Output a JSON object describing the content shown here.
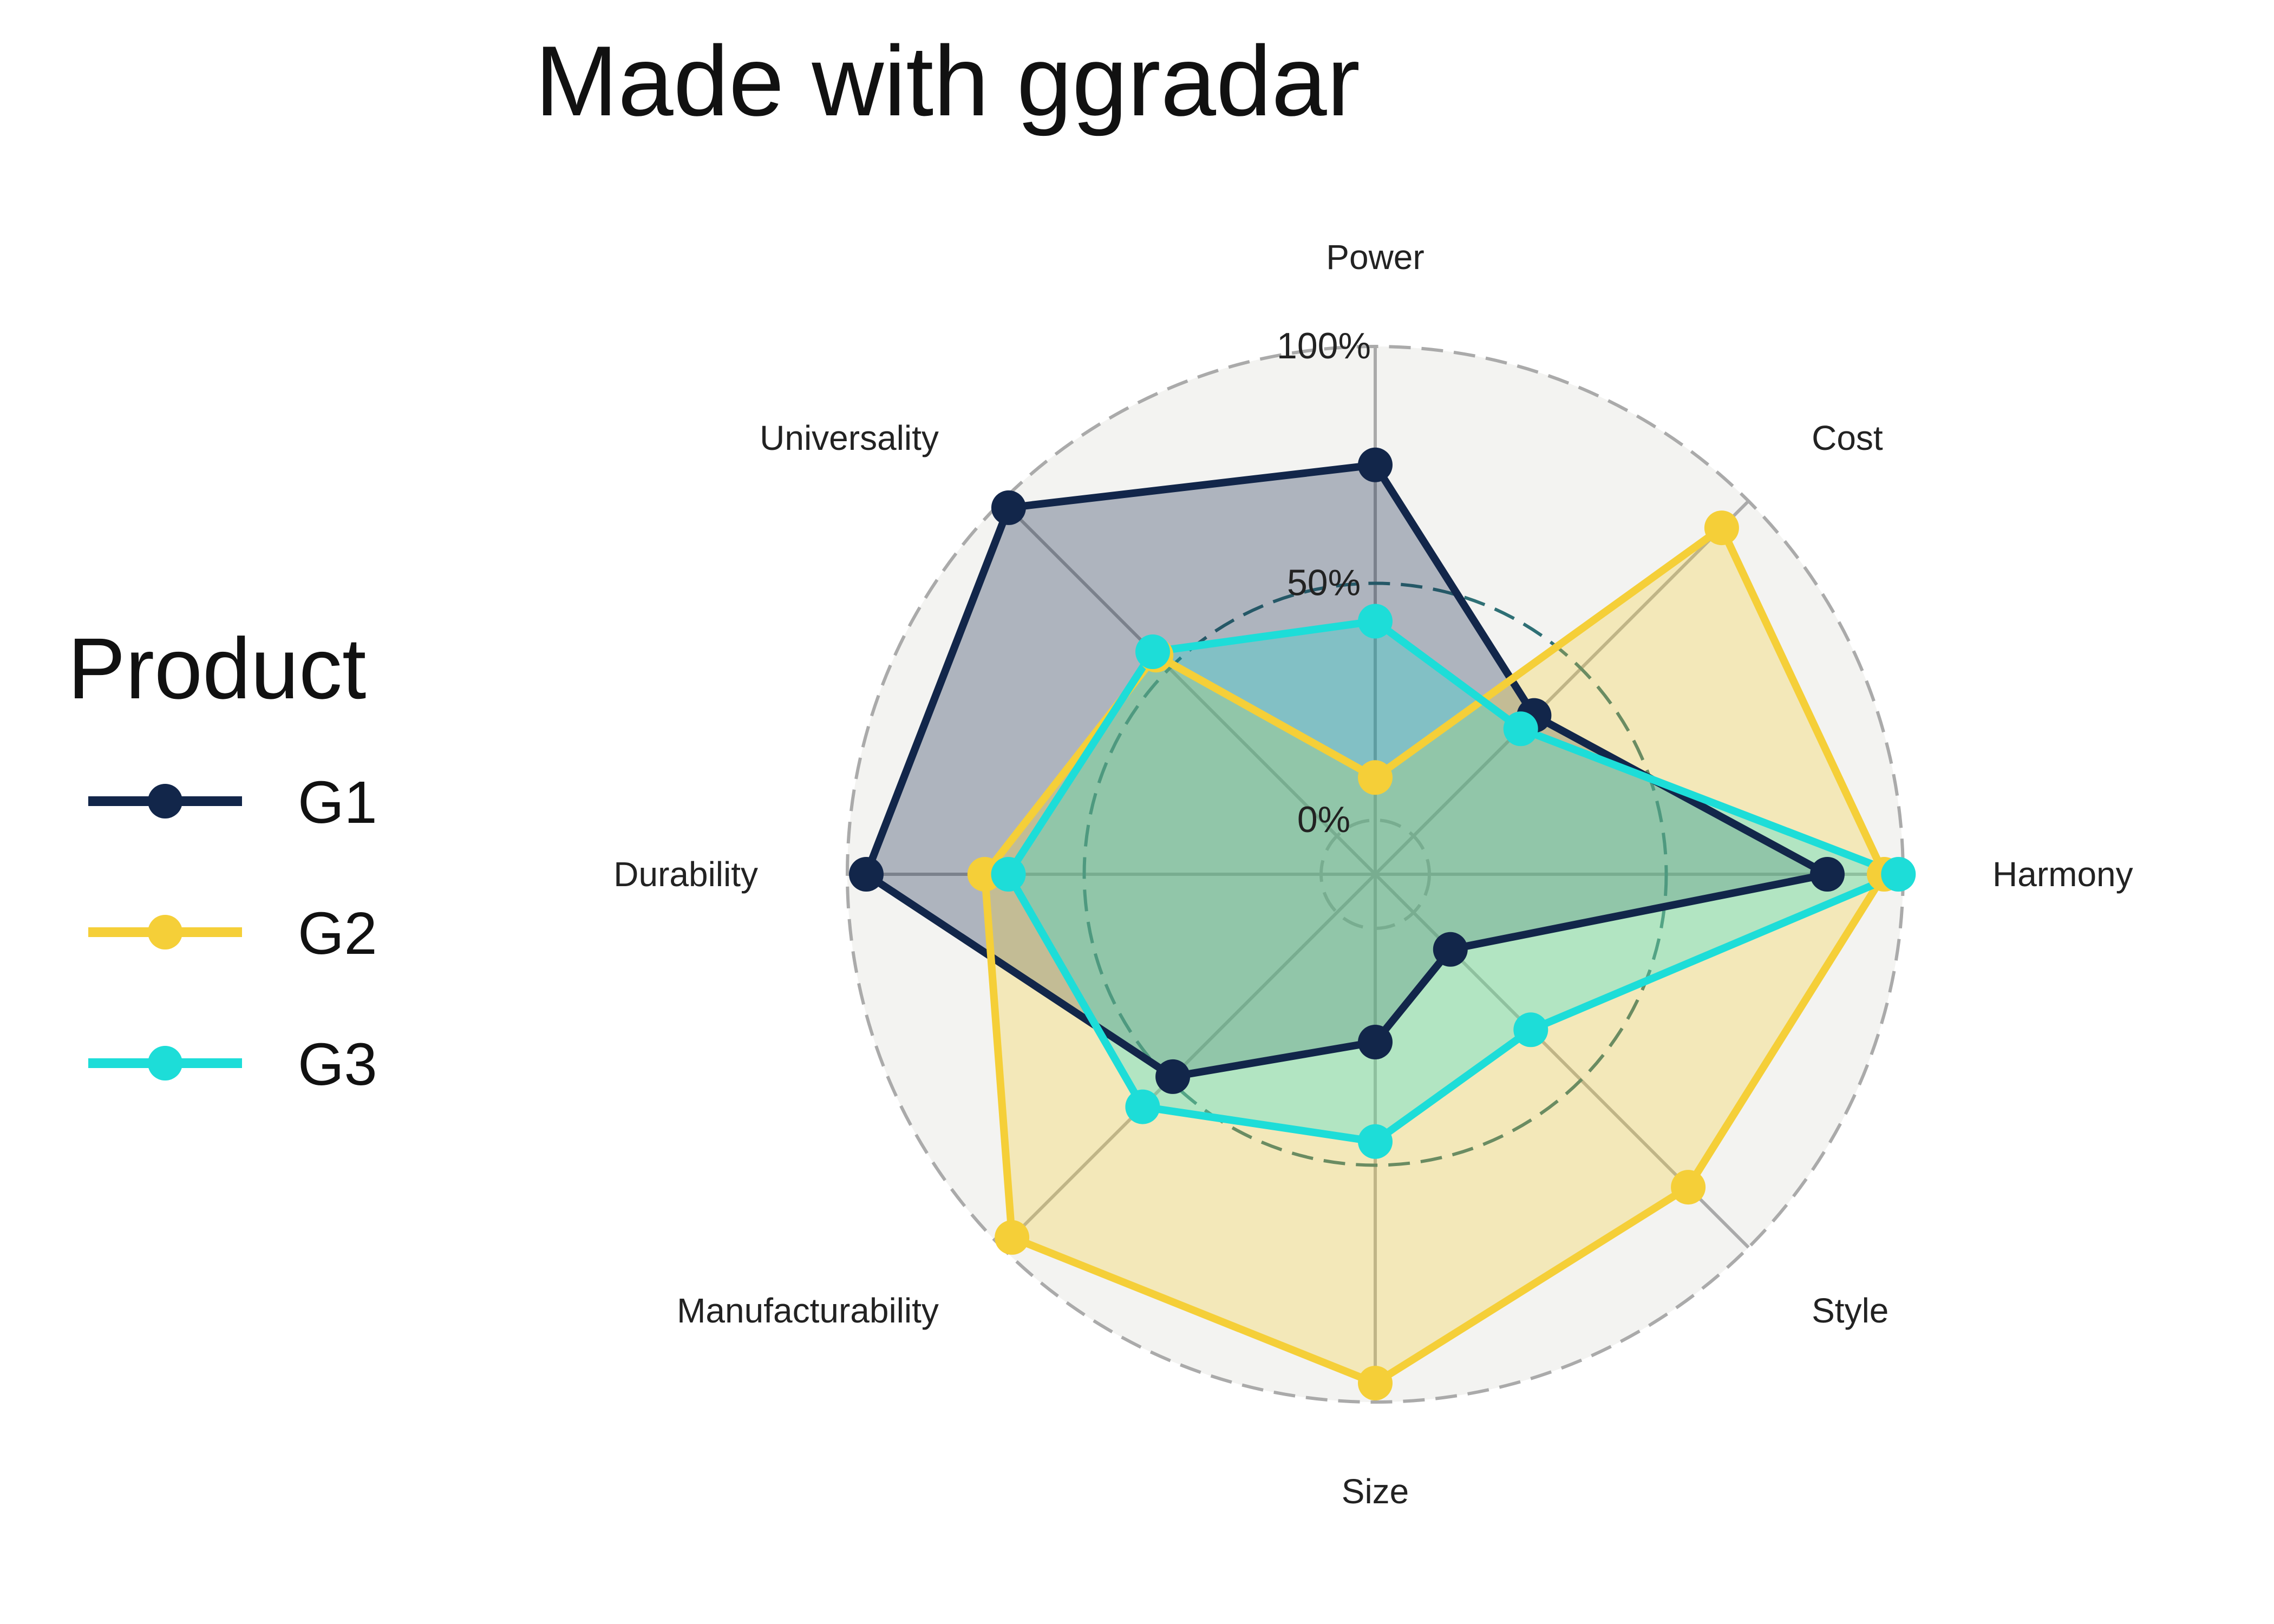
{
  "chart_data": {
    "type": "radar",
    "title": "Made with ggradar",
    "axes": [
      "Power",
      "Cost",
      "Harmony",
      "Style",
      "Size",
      "Manufacturability",
      "Durability",
      "Universality"
    ],
    "grid_labels": [
      "0%",
      "50%",
      "100%"
    ],
    "grid_values": [
      0,
      0.5,
      1.0
    ],
    "value_range": [
      0,
      1
    ],
    "legend": {
      "title": "Product",
      "placement": "left"
    },
    "series": [
      {
        "name": "G1",
        "color": "#12264A",
        "values": [
          0.75,
          0.36,
          0.84,
          0.11,
          0.24,
          0.49,
          0.96,
          0.98
        ]
      },
      {
        "name": "G2",
        "color": "#F5CF38",
        "values": [
          0.09,
          0.92,
          0.96,
          0.82,
          0.96,
          0.97,
          0.71,
          0.54
        ]
      },
      {
        "name": "G3",
        "color": "#1DDDD8",
        "values": [
          0.42,
          0.32,
          0.99,
          0.35,
          0.45,
          0.58,
          0.66,
          0.55
        ]
      }
    ]
  }
}
